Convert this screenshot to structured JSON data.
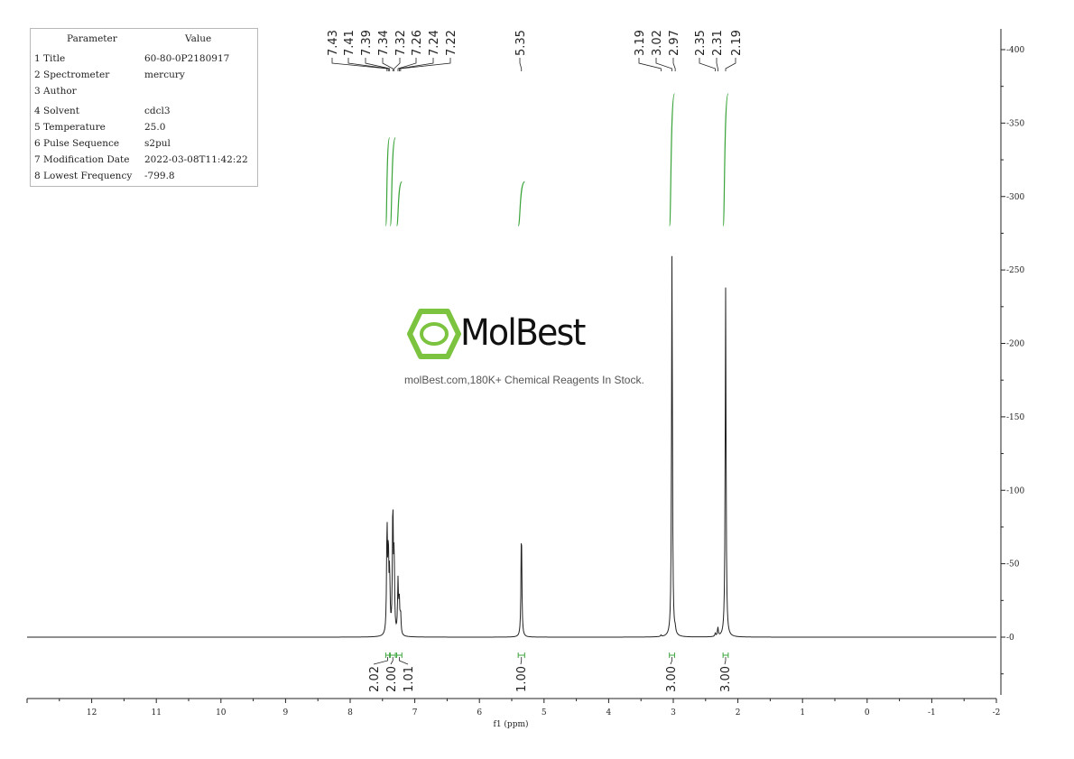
{
  "parameters": {
    "header": [
      "Parameter",
      "Value"
    ],
    "rows": [
      [
        "1 Title",
        "60-80-0P2180917"
      ],
      [
        "2 Spectrometer",
        "mercury"
      ],
      [
        "3 Author",
        ""
      ],
      [
        "4 Solvent",
        "cdcl3"
      ],
      [
        "5 Temperature",
        "25.0"
      ],
      [
        "6 Pulse Sequence",
        "s2pul"
      ],
      [
        "7 Modification Date",
        "2022-03-08T11:42:22"
      ],
      [
        "8 Lowest Frequency",
        "-799.8"
      ]
    ]
  },
  "watermark": {
    "brand": "MolBest",
    "tagline": "molBest.com,180K+ Chemical Reagents In Stock."
  },
  "colors": {
    "spectrum": "#222222",
    "integral": "#3aa43a",
    "logo": "#7cc440"
  },
  "chart_data": {
    "type": "line",
    "title": "",
    "xlabel": "f1 (ppm)",
    "ylabel": "",
    "xlim": [
      13.0,
      -2.0
    ],
    "ylim": [
      -40,
      410
    ],
    "x_ticks": [
      12,
      11,
      10,
      9,
      8,
      7,
      6,
      5,
      4,
      3,
      2,
      1,
      0,
      -1,
      -2
    ],
    "y_ticks": [
      0,
      50,
      100,
      150,
      200,
      250,
      300,
      350,
      400
    ],
    "peaks": [
      {
        "ppm": 7.43,
        "height": 73
      },
      {
        "ppm": 7.41,
        "height": 55
      },
      {
        "ppm": 7.39,
        "height": 40
      },
      {
        "ppm": 7.34,
        "height": 88
      },
      {
        "ppm": 7.32,
        "height": 52
      },
      {
        "ppm": 7.26,
        "height": 36
      },
      {
        "ppm": 7.24,
        "height": 22
      },
      {
        "ppm": 7.22,
        "height": 14
      },
      {
        "ppm": 5.35,
        "height": 75
      },
      {
        "ppm": 3.19,
        "height": 1
      },
      {
        "ppm": 3.02,
        "height": 263
      },
      {
        "ppm": 2.97,
        "height": 3
      },
      {
        "ppm": 2.35,
        "height": 2
      },
      {
        "ppm": 2.31,
        "height": 6
      },
      {
        "ppm": 2.19,
        "height": 238
      }
    ],
    "peak_labels": [
      {
        "group": [
          "7.43",
          "7.41",
          "7.39",
          "7.34",
          "7.32",
          "7.26",
          "7.24",
          "7.22"
        ],
        "ppm": [
          7.43,
          7.41,
          7.39,
          7.34,
          7.32,
          7.26,
          7.24,
          7.22
        ]
      },
      {
        "group": [
          "5.35"
        ],
        "ppm": [
          5.35
        ]
      },
      {
        "group": [
          "3.19",
          "3.02",
          "2.97"
        ],
        "ppm": [
          3.19,
          3.02,
          2.97
        ]
      },
      {
        "group": [
          "2.35",
          "2.31",
          "2.19"
        ],
        "ppm": [
          2.35,
          2.31,
          2.19
        ]
      }
    ],
    "integrals": [
      {
        "label": "2.02",
        "from": 7.45,
        "to": 7.39,
        "y_start": 280,
        "y_end": 340
      },
      {
        "label": "2.00",
        "from": 7.38,
        "to": 7.3,
        "y_start": 280,
        "y_end": 340
      },
      {
        "label": "1.01",
        "from": 7.28,
        "to": 7.2,
        "y_start": 280,
        "y_end": 310
      },
      {
        "label": "1.00",
        "from": 5.4,
        "to": 5.3,
        "y_start": 280,
        "y_end": 310
      },
      {
        "label": "3.00",
        "from": 3.06,
        "to": 2.98,
        "y_start": 280,
        "y_end": 370
      },
      {
        "label": "3.00",
        "from": 2.23,
        "to": 2.15,
        "y_start": 280,
        "y_end": 370
      }
    ]
  }
}
